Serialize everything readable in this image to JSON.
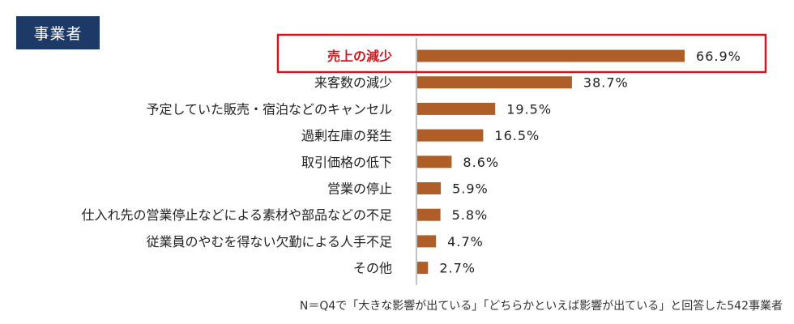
{
  "header": {
    "badge": "事業者"
  },
  "chart_data": {
    "type": "bar",
    "orientation": "horizontal",
    "categories": [
      "売上の減少",
      "来客数の減少",
      "予定していた販売・宿泊などのキャンセル",
      "過剰在庫の発生",
      "取引価格の低下",
      "営業の停止",
      "仕入れ先の営業停止などによる素材や部品などの不足",
      "従業員のやむを得ない欠勤による人手不足",
      "その他"
    ],
    "values": [
      66.9,
      38.7,
      19.5,
      16.5,
      8.6,
      5.9,
      5.8,
      4.7,
      2.7
    ],
    "value_labels": [
      "66.9%",
      "38.7%",
      "19.5%",
      "16.5%",
      "8.6%",
      "5.9%",
      "5.8%",
      "4.7%",
      "2.7%"
    ],
    "highlight_index": 0,
    "colors": {
      "bar": "#b05e27",
      "highlight_text": "#d2161e",
      "highlight_box": "#d2161e",
      "axis": "#888888"
    }
  },
  "footnote": "N＝Q4で「大きな影響が出ている」「どちらかといえば影響が出ている」と回答した542事業者"
}
